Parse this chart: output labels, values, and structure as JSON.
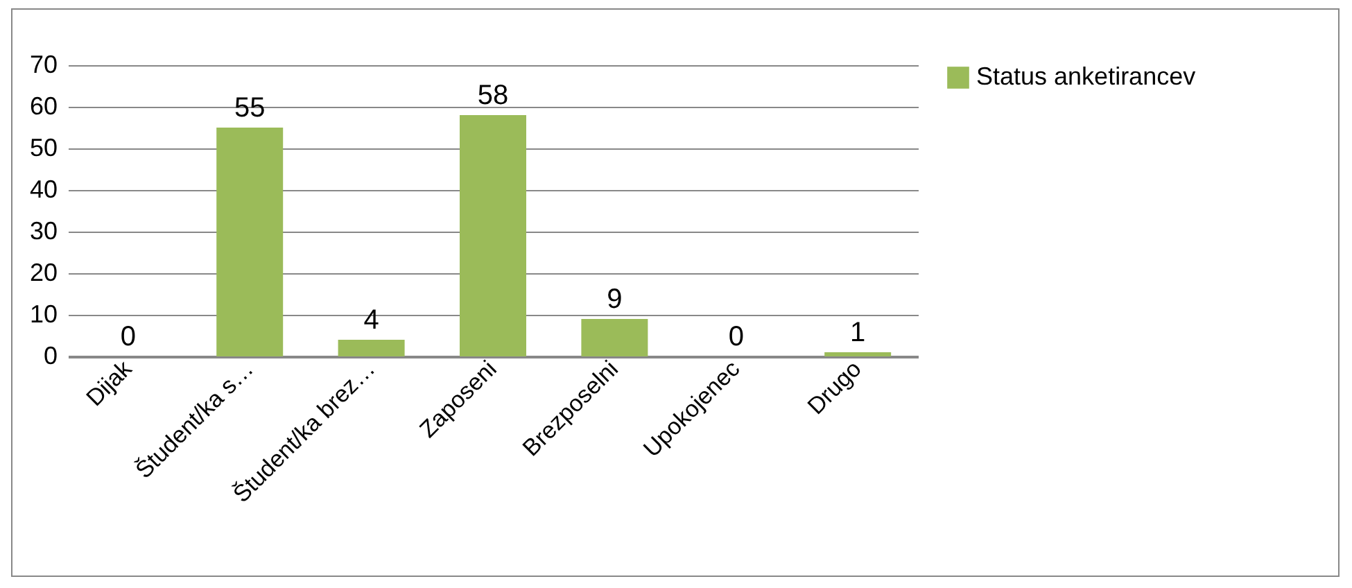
{
  "chart_data": {
    "type": "bar",
    "categories": [
      "Dijak",
      "Študent/ka s…",
      "Študent/ka brez…",
      "Zaposeni",
      "Brezposelni",
      "Upokojenec",
      "Drugo"
    ],
    "series": [
      {
        "name": "Status anketirancev",
        "color": "#9bbb59",
        "values": [
          0,
          55,
          4,
          58,
          9,
          0,
          1
        ]
      }
    ],
    "ylim": [
      0,
      70
    ],
    "yticks": [
      0,
      10,
      20,
      30,
      40,
      50,
      60,
      70
    ],
    "grid": "y",
    "legend": "right",
    "data_labels": true
  }
}
